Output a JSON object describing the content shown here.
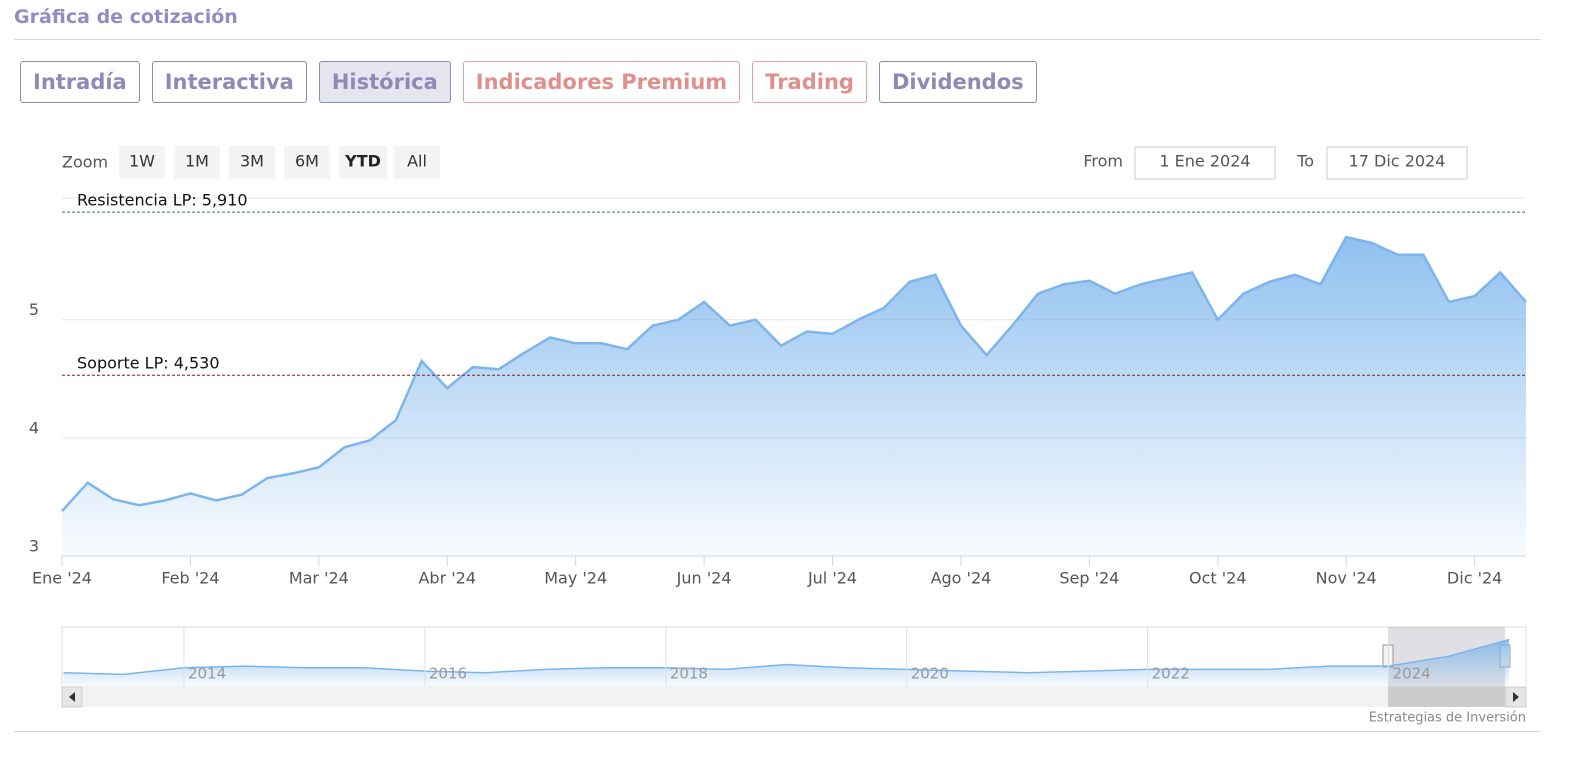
{
  "header": {
    "title": "Gráfica de cotización"
  },
  "tabs": [
    "Intradía",
    "Interactiva",
    "Histórica",
    "Indicadores Premium",
    "Trading",
    "Dividendos"
  ],
  "zoom": {
    "label": "Zoom",
    "buttons": [
      "1W",
      "1M",
      "3M",
      "6M",
      "YTD",
      "All"
    ]
  },
  "range": {
    "from_label": "From",
    "from": "1 Ene 2024",
    "to_label": "To",
    "to": "17 Dic 2024"
  },
  "credit": "Estrategias de Inversión",
  "chart_data": [
    {
      "type": "area",
      "color": "#7cb5ec",
      "categories": [
        "Ene '24",
        null,
        null,
        null,
        null,
        "Feb '24",
        null,
        null,
        null,
        null,
        "Mar '24",
        null,
        null,
        null,
        null,
        "Abr '24",
        null,
        null,
        null,
        null,
        "May '24",
        null,
        null,
        null,
        null,
        "Jun '24",
        null,
        null,
        null,
        null,
        "Jul '24",
        null,
        null,
        null,
        null,
        "Ago '24",
        null,
        null,
        null,
        null,
        "Sep '24",
        null,
        null,
        null,
        null,
        "Oct '24",
        null,
        null,
        null,
        null,
        "Nov '24",
        null,
        null,
        null,
        null,
        "Dic '24",
        null,
        null
      ],
      "values": [
        3.38,
        3.62,
        3.48,
        3.43,
        3.47,
        3.53,
        3.47,
        3.52,
        3.66,
        3.7,
        3.75,
        3.92,
        3.98,
        4.15,
        4.65,
        4.42,
        4.6,
        4.58,
        4.72,
        4.85,
        4.8,
        4.8,
        4.75,
        4.95,
        5.0,
        5.15,
        4.95,
        5.0,
        4.78,
        4.9,
        4.88,
        5.0,
        5.1,
        5.32,
        5.38,
        4.95,
        4.7,
        4.95,
        5.22,
        5.3,
        5.33,
        5.22,
        5.3,
        5.35,
        5.4,
        5.0,
        5.22,
        5.32,
        5.38,
        5.3,
        5.7,
        5.65,
        5.55,
        5.55,
        5.15,
        5.2,
        5.4,
        5.15
      ],
      "ylim": [
        3,
        6.03
      ],
      "yticks": [
        3,
        4,
        5
      ],
      "grid": true,
      "annotations": [
        {
          "label": "Resistencia LP: 5,910",
          "value": 5.91,
          "color": "#2e7d32"
        },
        {
          "label": "Soporte LP: 4,530",
          "value": 4.53,
          "color": "#8b1a1a"
        }
      ]
    },
    {
      "type": "area",
      "color": "#7cb5ec",
      "categories": [
        null,
        null,
        "2014",
        null,
        null,
        null,
        "2016",
        null,
        null,
        null,
        "2018",
        null,
        null,
        null,
        "2020",
        null,
        null,
        null,
        "2022",
        null,
        null,
        null,
        "2024",
        null,
        null
      ],
      "values": [
        3.3,
        3.2,
        3.6,
        3.7,
        3.6,
        3.6,
        3.4,
        3.3,
        3.5,
        3.6,
        3.6,
        3.5,
        3.8,
        3.6,
        3.5,
        3.4,
        3.3,
        3.4,
        3.5,
        3.5,
        3.5,
        3.7,
        3.7,
        4.3,
        5.3
      ],
      "ylim": [
        2.5,
        6
      ]
    }
  ]
}
